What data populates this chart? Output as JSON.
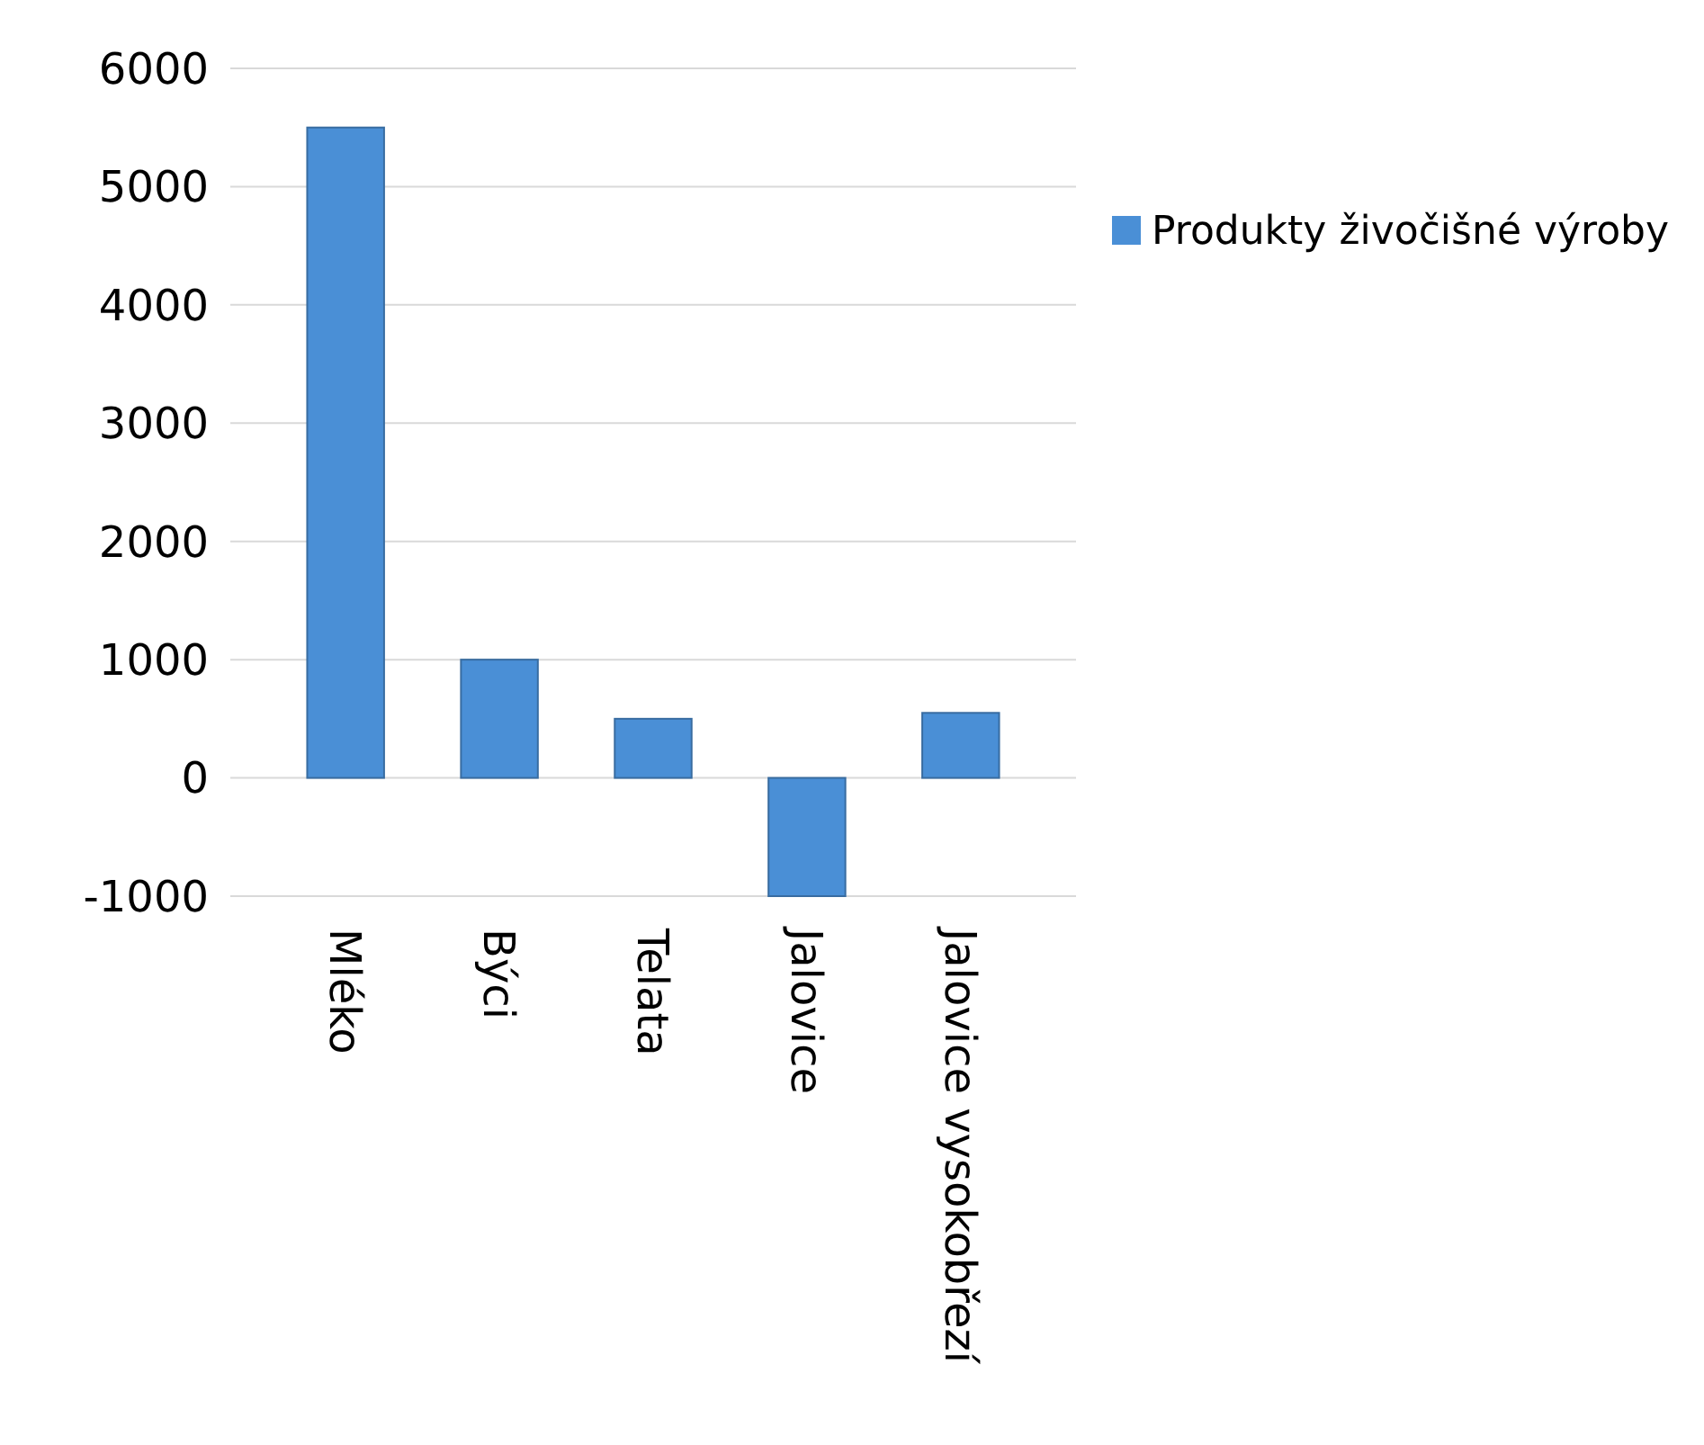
{
  "chart_data": {
    "type": "bar",
    "categories": [
      "Mléko",
      "Býci",
      "Telata",
      "Jalovice",
      "Jalovice vysokobřezí"
    ],
    "series": [
      {
        "name": "Produkty živočišné výroby",
        "color": "#4a8fd6",
        "values": [
          5500,
          1000,
          500,
          -1000,
          550
        ]
      }
    ],
    "ylim": [
      -1000,
      6000
    ],
    "yticks": [
      -1000,
      0,
      1000,
      2000,
      3000,
      4000,
      5000,
      6000
    ],
    "grid": "y",
    "legend": "right"
  }
}
